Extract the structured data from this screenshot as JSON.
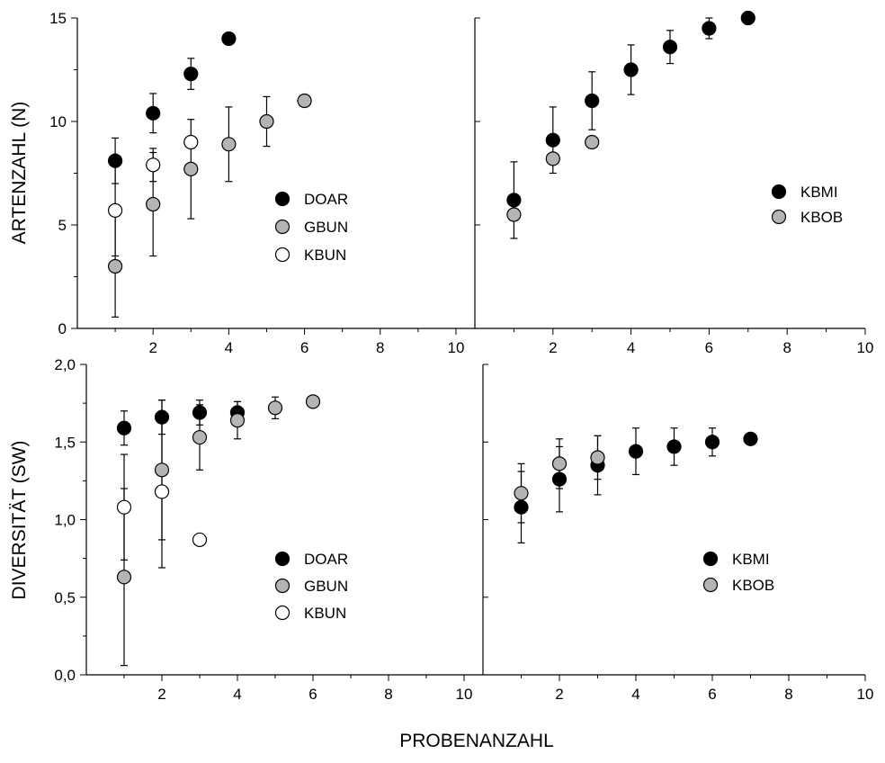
{
  "figure": {
    "ylabel_top": "ARTENZAHL (N)",
    "ylabel_bottom": "DIVERSITÄT (SW)",
    "xlabel": "PROBENANZAHL"
  },
  "colors": {
    "black": "#000000",
    "grey": "#b4b4b4",
    "white": "#ffffff"
  },
  "chart_data": [
    {
      "type": "scatter",
      "panel": "top-left",
      "xlim": [
        0,
        10.5
      ],
      "ylim": [
        0,
        15
      ],
      "x_ticks": [
        "2",
        "4",
        "6",
        "8",
        "10"
      ],
      "y_ticks": [
        "0",
        "5",
        "10",
        "15"
      ],
      "legend_position": "center-right",
      "series": [
        {
          "name": "DOAR",
          "fill": "black",
          "points": [
            {
              "x": 1,
              "y": 8.1,
              "err": 1.1
            },
            {
              "x": 2,
              "y": 10.4,
              "err": 0.95
            },
            {
              "x": 3,
              "y": 12.3,
              "err": 0.75
            },
            {
              "x": 4,
              "y": 14.0,
              "err": 0
            }
          ]
        },
        {
          "name": "GBUN",
          "fill": "grey",
          "points": [
            {
              "x": 1,
              "y": 3.0,
              "err": 2.45
            },
            {
              "x": 2,
              "y": 6.0,
              "err": 2.5
            },
            {
              "x": 3,
              "y": 7.7,
              "err": 2.4
            },
            {
              "x": 4,
              "y": 8.9,
              "err": 1.8
            },
            {
              "x": 5,
              "y": 10.0,
              "err": 1.2
            },
            {
              "x": 6,
              "y": 11.0,
              "err": 0
            }
          ]
        },
        {
          "name": "KBUN",
          "fill": "white",
          "points": [
            {
              "x": 1,
              "y": 5.7,
              "err": 2.2
            },
            {
              "x": 2,
              "y": 7.9,
              "err": 0.8
            },
            {
              "x": 3,
              "y": 9.0,
              "err": 0
            }
          ]
        }
      ]
    },
    {
      "type": "scatter",
      "panel": "top-right",
      "xlim": [
        0,
        10
      ],
      "ylim": [
        0,
        15
      ],
      "x_ticks": [
        "2",
        "4",
        "6",
        "8",
        "10"
      ],
      "y_ticks": [],
      "legend_position": "center-right",
      "series": [
        {
          "name": "KBMI",
          "fill": "black",
          "points": [
            {
              "x": 1,
              "y": 6.2,
              "err": 1.85
            },
            {
              "x": 2,
              "y": 9.1,
              "err": 1.6
            },
            {
              "x": 3,
              "y": 11.0,
              "err": 1.4
            },
            {
              "x": 4,
              "y": 12.5,
              "err": 1.2
            },
            {
              "x": 5,
              "y": 13.6,
              "err": 0.8
            },
            {
              "x": 6,
              "y": 14.5,
              "err": 0.5
            },
            {
              "x": 7,
              "y": 15.0,
              "err": 0
            }
          ]
        },
        {
          "name": "KBOB",
          "fill": "grey",
          "points": [
            {
              "x": 1,
              "y": 5.5,
              "err": 0
            },
            {
              "x": 2,
              "y": 8.2,
              "err": 0
            },
            {
              "x": 3,
              "y": 9.0,
              "err": 0
            }
          ]
        }
      ]
    },
    {
      "type": "scatter",
      "panel": "bottom-left",
      "xlim": [
        0,
        10.5
      ],
      "ylim": [
        0,
        2.0
      ],
      "x_ticks": [
        "2",
        "4",
        "6",
        "8",
        "10"
      ],
      "y_ticks": [
        "0,0",
        "0,5",
        "1,0",
        "1,5",
        "2,0"
      ],
      "legend_position": "lower-right",
      "series": [
        {
          "name": "DOAR",
          "fill": "black",
          "points": [
            {
              "x": 1,
              "y": 1.59,
              "err": 0.11
            },
            {
              "x": 2,
              "y": 1.66,
              "err": 0.11
            },
            {
              "x": 3,
              "y": 1.69,
              "err": 0.08
            },
            {
              "x": 4,
              "y": 1.69,
              "err": 0.07
            }
          ]
        },
        {
          "name": "GBUN",
          "fill": "grey",
          "points": [
            {
              "x": 1,
              "y": 0.63,
              "err": 0.57
            },
            {
              "x": 2,
              "y": 1.32,
              "err": 0.45
            },
            {
              "x": 3,
              "y": 1.53,
              "err": 0.21
            },
            {
              "x": 4,
              "y": 1.64,
              "err": 0.12
            },
            {
              "x": 5,
              "y": 1.72,
              "err": 0.07
            },
            {
              "x": 6,
              "y": 1.76,
              "err": 0
            }
          ]
        },
        {
          "name": "KBUN",
          "fill": "white",
          "points": [
            {
              "x": 1,
              "y": 1.08,
              "err": 0.34
            },
            {
              "x": 2,
              "y": 1.18,
              "err": 0.49
            },
            {
              "x": 3,
              "y": 0.87,
              "err": 0
            }
          ]
        }
      ]
    },
    {
      "type": "scatter",
      "panel": "bottom-right",
      "xlim": [
        0,
        10
      ],
      "ylim": [
        0,
        2.0
      ],
      "x_ticks": [
        "2",
        "4",
        "6",
        "8",
        "10"
      ],
      "y_ticks": [],
      "legend_position": "center-right",
      "series": [
        {
          "name": "KBMI",
          "fill": "black",
          "points": [
            {
              "x": 1,
              "y": 1.08,
              "err": 0.23
            },
            {
              "x": 2,
              "y": 1.26,
              "err": 0.21
            },
            {
              "x": 3,
              "y": 1.35,
              "err": 0.19
            },
            {
              "x": 4,
              "y": 1.44,
              "err": 0.15
            },
            {
              "x": 5,
              "y": 1.47,
              "err": 0.12
            },
            {
              "x": 6,
              "y": 1.5,
              "err": 0.09
            },
            {
              "x": 7,
              "y": 1.52,
              "err": 0
            }
          ]
        },
        {
          "name": "KBOB",
          "fill": "grey",
          "points": [
            {
              "x": 1,
              "y": 1.17,
              "err": 0.19
            },
            {
              "x": 2,
              "y": 1.36,
              "err": 0.16
            },
            {
              "x": 3,
              "y": 1.4,
              "err": 0.14
            }
          ]
        }
      ]
    }
  ]
}
